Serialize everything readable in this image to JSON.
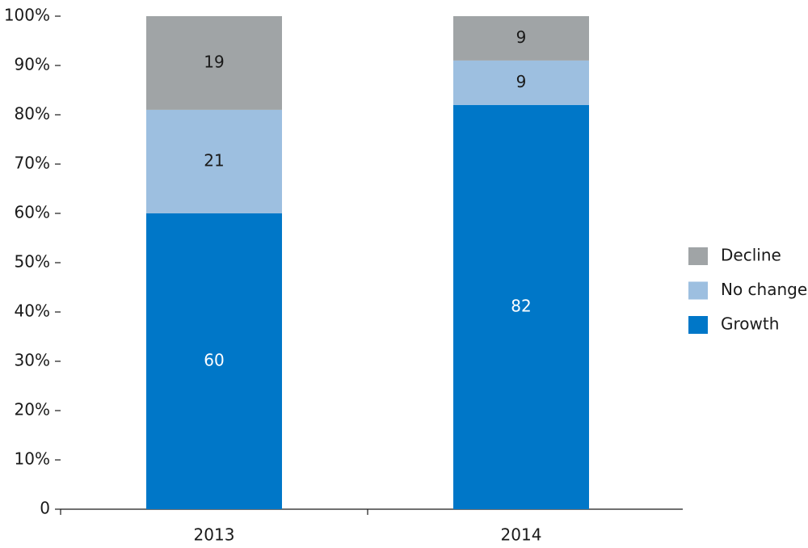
{
  "chart_data": {
    "type": "stacked_bar",
    "categories": [
      "2013",
      "2014"
    ],
    "series": [
      {
        "name": "Growth",
        "color": "#0077c8",
        "values": [
          60,
          82
        ]
      },
      {
        "name": "No change",
        "color": "#9dbfe0",
        "values": [
          21,
          9
        ]
      },
      {
        "name": "Decline",
        "color": "#a0a4a6",
        "values": [
          19,
          9
        ]
      }
    ],
    "ylim": [
      0,
      100
    ],
    "yticks": [
      0,
      {
        "value": 10,
        "label": "10%"
      },
      {
        "value": 20,
        "label": "20%"
      },
      {
        "value": 30,
        "label": "30%"
      },
      {
        "value": 40,
        "label": "40%"
      },
      {
        "value": 50,
        "label": "50%"
      },
      {
        "value": 60,
        "label": "60%"
      },
      {
        "value": 70,
        "label": "70%"
      },
      {
        "value": 80,
        "label": "80%"
      },
      {
        "value": 90,
        "label": "90%"
      },
      {
        "value": 100,
        "label": "100%"
      }
    ],
    "legend": "right"
  }
}
